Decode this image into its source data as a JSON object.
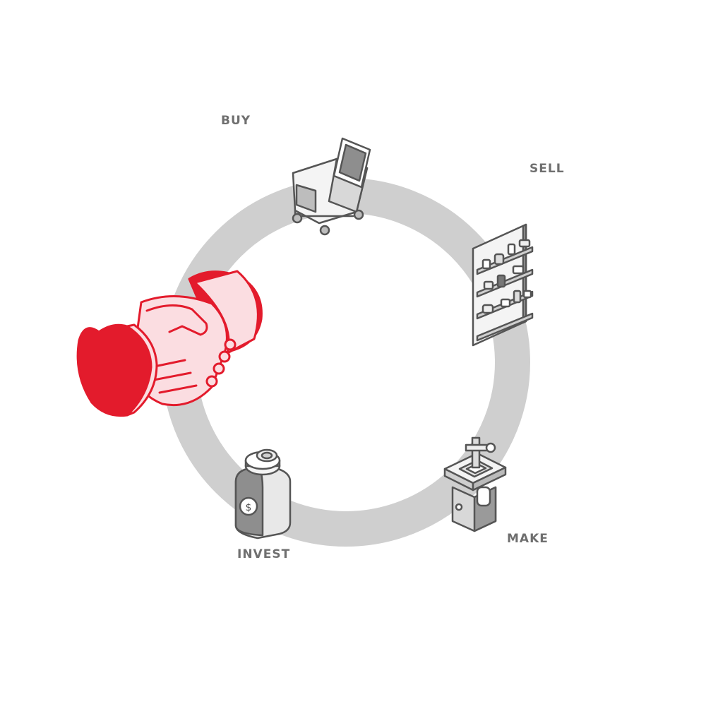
{
  "diagram": {
    "labels": {
      "buy": "BUY",
      "sell": "SELL",
      "make": "MAKE",
      "invest": "INVEST"
    },
    "icons": {
      "buy": "shopping-cart-icon",
      "sell": "shelf-display-icon",
      "make": "3d-printer-machine-icon",
      "invest": "coin-jar-icon",
      "center": "handshake-icon"
    },
    "colors": {
      "ring": "#cfcfcf",
      "label": "#6f6f6f",
      "accent": "#e31b2c",
      "accent_light": "#fbdde1",
      "icon_stroke": "#555555",
      "icon_fill": "#f2f2f2",
      "icon_shade": "#9a9a9a"
    }
  }
}
